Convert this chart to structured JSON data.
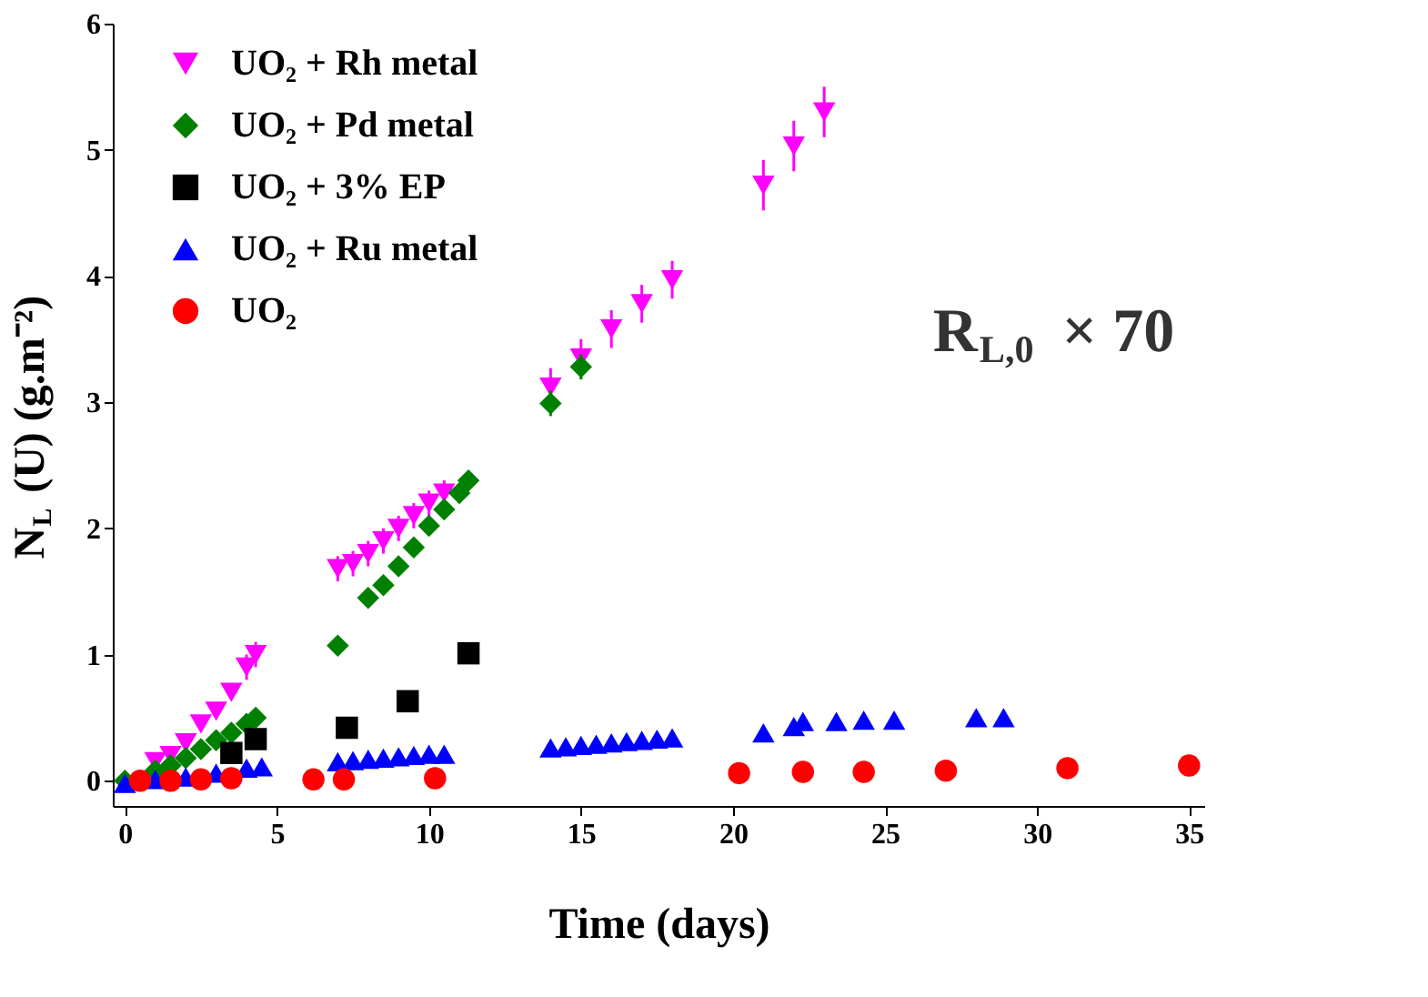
{
  "chart_data": {
    "type": "scatter",
    "xlabel": "Time (days)",
    "ylabel": "N$_{L}$ (U) (g.m⁻²)",
    "xlim": [
      -0.4,
      35.5
    ],
    "ylim": [
      -0.2,
      6
    ],
    "xticks": [
      0,
      5,
      10,
      15,
      20,
      25,
      30,
      35
    ],
    "yticks": [
      0,
      1,
      2,
      3,
      4,
      5,
      6
    ],
    "grid": false,
    "legend": "top left",
    "annotations": [
      "R$_{L,0}$ × 70"
    ],
    "series": [
      {
        "name": "UO₂ + Rh metal",
        "color": "#ff00ff",
        "marker": "triangle-down",
        "x": [
          1,
          1.5,
          2,
          2.5,
          3,
          3.5,
          4,
          4.3,
          7,
          7.5,
          8,
          8.5,
          9,
          9.5,
          10,
          10.5,
          14,
          15,
          16,
          17,
          18,
          21,
          22,
          23
        ],
        "values": [
          0.15,
          0.2,
          0.3,
          0.45,
          0.55,
          0.7,
          0.9,
          1.0,
          1.68,
          1.72,
          1.8,
          1.9,
          2.0,
          2.1,
          2.2,
          2.28,
          3.12,
          3.35,
          3.58,
          3.78,
          3.97,
          4.72,
          5.03,
          5.3
        ],
        "errors": [
          0.05,
          0.05,
          0.05,
          0.05,
          0.05,
          0.05,
          0.1,
          0.1,
          0.1,
          0.1,
          0.1,
          0.1,
          0.1,
          0.1,
          0.1,
          0.1,
          0.15,
          0.15,
          0.15,
          0.15,
          0.15,
          0.2,
          0.2,
          0.2
        ]
      },
      {
        "name": "UO₂ + Pd metal",
        "color": "#008000",
        "marker": "diamond",
        "x": [
          0,
          0.5,
          1,
          1.5,
          2,
          2.5,
          3,
          3.5,
          4,
          4.3,
          7,
          8,
          8.5,
          9,
          9.5,
          10,
          10.5,
          11,
          11.3,
          14,
          15
        ],
        "values": [
          0,
          null,
          0.08,
          0.12,
          0.18,
          0.25,
          0.32,
          0.38,
          0.45,
          0.5,
          1.07,
          1.45,
          1.55,
          1.7,
          1.85,
          2.02,
          2.15,
          2.28,
          2.38,
          2.99,
          3.28
        ],
        "errors": [
          0.05,
          null,
          0.05,
          0.05,
          0.05,
          0.05,
          0.05,
          0.05,
          0.05,
          0.05,
          0.05,
          0.05,
          0.05,
          0.05,
          0.05,
          0.05,
          0.05,
          0.05,
          0.05,
          0.1,
          0.1
        ]
      },
      {
        "name": "UO₂ + 3% EP",
        "color": "#000000",
        "marker": "square",
        "x": [
          3.5,
          4.3,
          7.3,
          9.3,
          11.3
        ],
        "values": [
          0.22,
          0.33,
          0.42,
          0.63,
          1.01
        ]
      },
      {
        "name": "UO₂ + Ru metal",
        "color": "#0000ff",
        "marker": "triangle-up",
        "x": [
          0,
          1,
          2,
          3,
          3.5,
          4,
          4.5,
          7,
          7.5,
          8,
          8.5,
          9,
          9.5,
          10,
          10.5,
          14,
          14.5,
          15,
          15.5,
          16,
          16.5,
          17,
          17.5,
          18,
          21,
          22,
          22.3,
          23.4,
          24.3,
          25.3,
          28,
          28.9
        ],
        "values": [
          -0.02,
          0.01,
          0.03,
          0.06,
          null,
          0.1,
          0.11,
          0.15,
          0.16,
          0.17,
          0.18,
          0.19,
          0.2,
          0.21,
          0.21,
          0.26,
          0.27,
          0.28,
          0.29,
          0.3,
          0.31,
          0.32,
          0.33,
          0.34,
          0.38,
          0.43,
          0.47,
          0.47,
          0.48,
          0.48,
          0.5,
          0.5
        ],
        "errors": [
          0.05,
          0.05,
          0.05,
          0.05,
          null,
          0.05,
          0.05,
          0.05,
          0.05,
          0.05,
          0.05,
          0.05,
          0.05,
          0.05,
          0.05,
          0.05,
          0.05,
          0.05,
          0.05,
          0.05,
          0.05,
          0.05,
          0.05,
          0.05,
          0.05,
          0.05,
          0.05,
          0.05,
          0.05,
          0.05,
          0.05,
          0.05
        ]
      },
      {
        "name": "UO₂",
        "color": "#ff0000",
        "marker": "circle",
        "x": [
          0.5,
          1.5,
          2.5,
          3.5,
          6.2,
          7.2,
          10.2,
          20.2,
          22.3,
          24.3,
          27,
          31,
          35
        ],
        "values": [
          0,
          0,
          0.01,
          0.02,
          0.01,
          0.01,
          0.02,
          0.06,
          0.07,
          0.07,
          0.08,
          0.1,
          0.12
        ]
      }
    ]
  }
}
